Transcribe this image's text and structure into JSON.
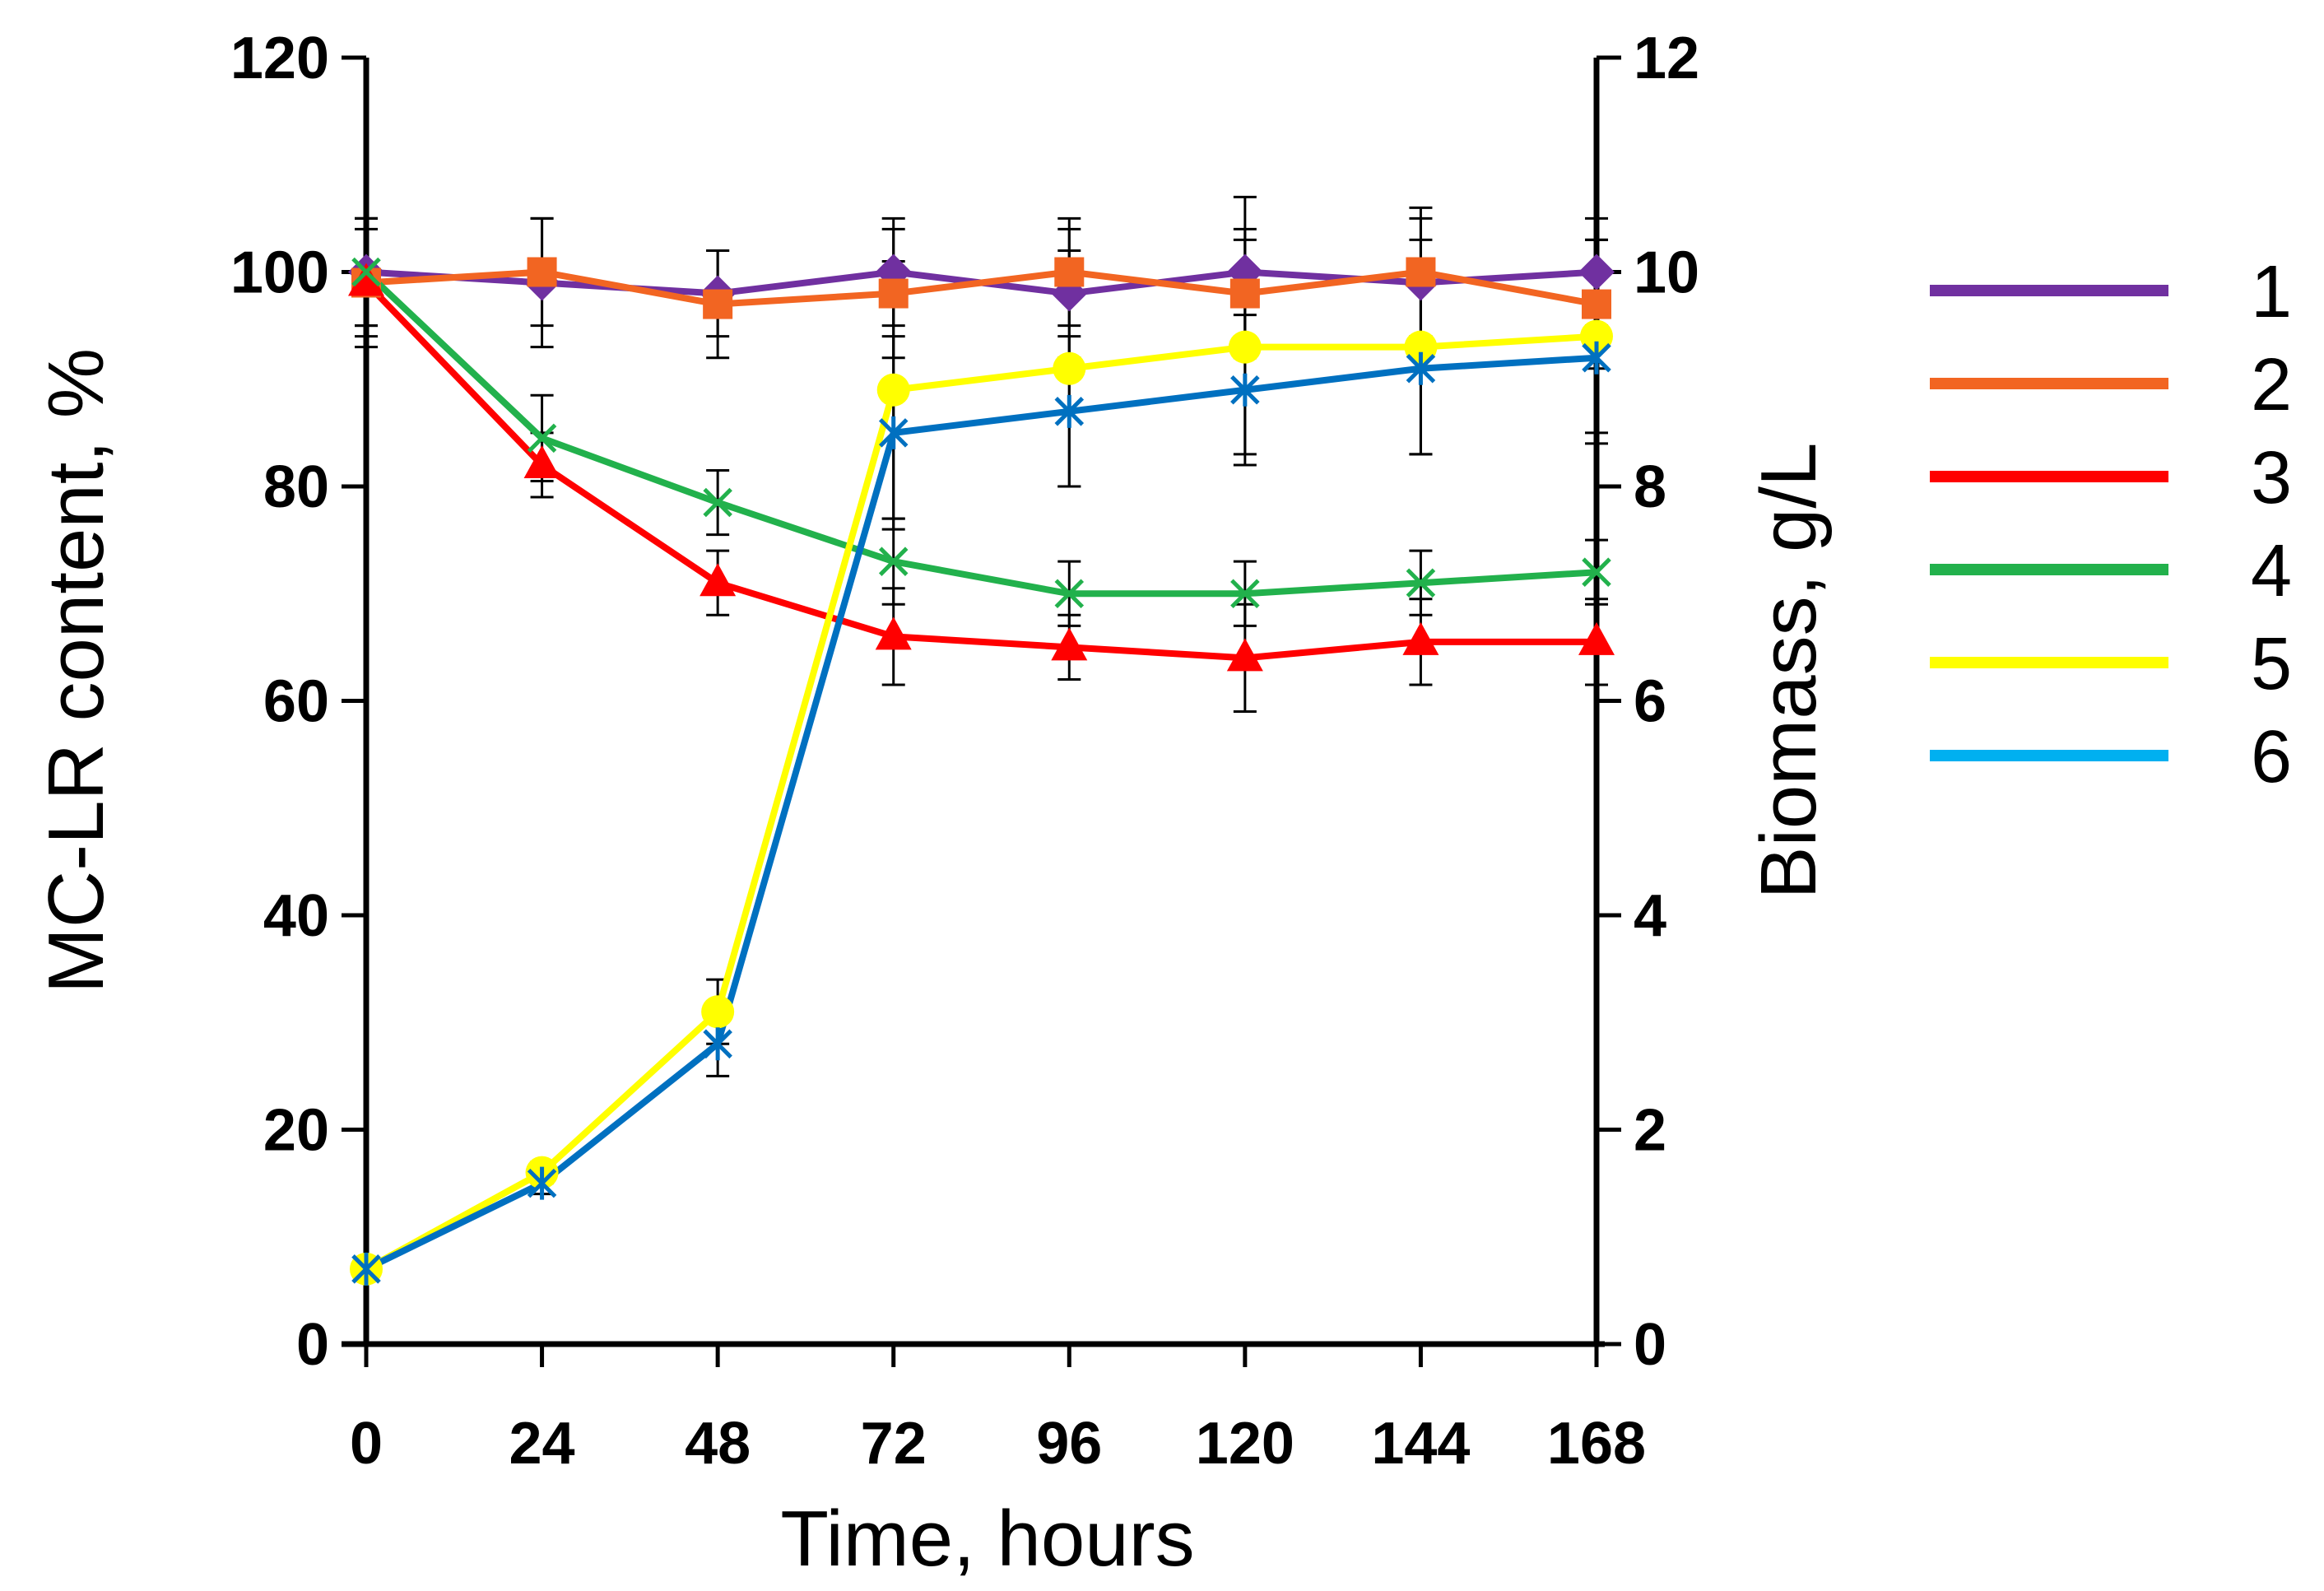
{
  "chart_data": {
    "type": "line",
    "x": [
      0,
      24,
      48,
      72,
      96,
      120,
      144,
      168
    ],
    "xlabel": "Time, hours",
    "xticks": [
      "0",
      "24",
      "48",
      "72",
      "96",
      "120",
      "144",
      "168"
    ],
    "ylabel_left": "MC-LR content, %",
    "ylim_left": [
      0,
      120
    ],
    "yticks_left": [
      "0",
      "20",
      "40",
      "60",
      "80",
      "100",
      "120"
    ],
    "ylabel_right": "Biomass, g/L",
    "ylim_right": [
      0,
      12
    ],
    "yticks_right": [
      "0",
      "2",
      "4",
      "6",
      "8",
      "10",
      "12"
    ],
    "grid": false,
    "legend_position": "right",
    "series": [
      {
        "name": "1",
        "axis": "left",
        "marker": "diamond",
        "color": "#7030A0",
        "values": [
          100,
          99,
          98,
          100,
          98,
          100,
          99,
          100
        ],
        "errors": [
          5,
          6,
          4,
          5,
          6,
          7,
          6,
          5
        ]
      },
      {
        "name": "2",
        "axis": "left",
        "marker": "square",
        "color": "#F26522",
        "values": [
          99,
          100,
          97,
          98,
          100,
          98,
          100,
          97
        ],
        "errors": [
          6,
          5,
          5,
          6,
          5,
          6,
          6,
          6
        ]
      },
      {
        "name": "3",
        "axis": "left",
        "marker": "triangle",
        "color": "#FF0000",
        "values": [
          99,
          82,
          71,
          66,
          65,
          64,
          65.5,
          65.5
        ],
        "errors": [
          5,
          3,
          3,
          4.5,
          3,
          5,
          4,
          4
        ]
      },
      {
        "name": "4",
        "axis": "left",
        "marker": "x",
        "color": "#22B14C",
        "values": [
          100,
          84.5,
          78.5,
          73,
          70,
          70,
          71,
          72
        ],
        "errors": [
          5,
          4,
          3,
          4,
          3,
          3,
          3,
          3
        ]
      },
      {
        "name": "5",
        "axis": "right",
        "marker": "circle",
        "color": "#FFFF00",
        "values": [
          0.7,
          1.6,
          3.1,
          8.9,
          9.1,
          9.3,
          9.3,
          9.4
        ],
        "errors": [
          0.1,
          0.1,
          0.3,
          1.2,
          1.1,
          1.0,
          1.0,
          0.9
        ]
      },
      {
        "name": "6",
        "axis": "right",
        "marker": "asterisk",
        "color": "#0070C0",
        "legend_color": "#00B0F0",
        "values": [
          0.7,
          1.5,
          2.8,
          8.5,
          8.7,
          8.9,
          9.1,
          9.2
        ],
        "errors": [
          0.1,
          0.1,
          0.3,
          0.9,
          0.7,
          0.7,
          0.8,
          0.8
        ]
      }
    ]
  }
}
